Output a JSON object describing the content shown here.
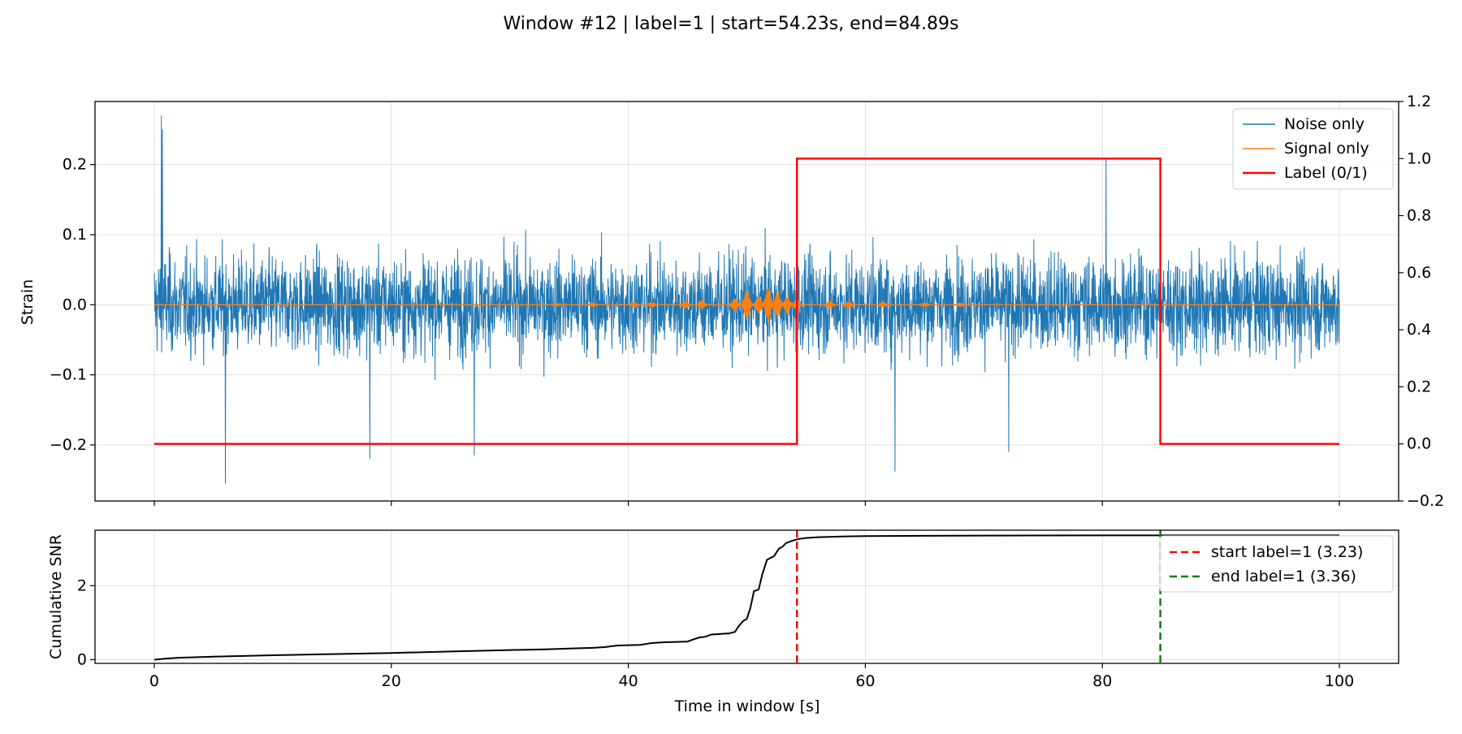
{
  "figure": {
    "title": "Window #12 | label=1 | start=54.23s, end=84.89s"
  },
  "chart_data": [
    {
      "type": "line",
      "panel": "top",
      "ylabel": "Strain",
      "xlim": [
        -5,
        105
      ],
      "ylim": [
        -0.28,
        0.29
      ],
      "ylim_right": [
        -0.2,
        1.2
      ],
      "grid": true,
      "x_ticks": [
        0,
        20,
        40,
        60,
        80,
        100
      ],
      "y_ticks": [
        "−0.2",
        "−0.1",
        "0.0",
        "0.1",
        "0.2"
      ],
      "y_tick_values": [
        -0.2,
        -0.1,
        0.0,
        0.1,
        0.2
      ],
      "y_ticks_right": [
        "−0.2",
        "0.0",
        "0.2",
        "0.4",
        "0.6",
        "0.8",
        "1.0",
        "1.2"
      ],
      "y_tick_values_right": [
        -0.2,
        0.0,
        0.2,
        0.4,
        0.6,
        0.8,
        1.0,
        1.2
      ],
      "legend_placement": "top-right",
      "series": [
        {
          "name": "Noise only",
          "color": "#1f77b4",
          "kind": "noise",
          "x_range": [
            0,
            100
          ],
          "envelope": 0.12,
          "spikes": [
            [
              0.6,
              0.27
            ],
            [
              0.7,
              0.25
            ],
            [
              6.0,
              -0.255
            ],
            [
              18.2,
              -0.22
            ],
            [
              27.0,
              -0.215
            ],
            [
              80.3,
              0.21
            ],
            [
              62.5,
              -0.238
            ],
            [
              72.1,
              -0.21
            ]
          ]
        },
        {
          "name": "Signal only",
          "color": "#ff7f0e",
          "kind": "chirp",
          "x_range": [
            0,
            100
          ],
          "bursts": [
            [
              34.0,
              0.002
            ],
            [
              37.0,
              0.003
            ],
            [
              40.5,
              0.004
            ],
            [
              42.0,
              0.004
            ],
            [
              44.8,
              0.006
            ],
            [
              46.2,
              0.007
            ],
            [
              49.0,
              0.01
            ],
            [
              50.0,
              0.022
            ],
            [
              51.0,
              0.013
            ],
            [
              51.8,
              0.026
            ],
            [
              52.6,
              0.02
            ],
            [
              53.4,
              0.013
            ],
            [
              54.2,
              0.008
            ],
            [
              57.0,
              0.006
            ],
            [
              58.6,
              0.005
            ],
            [
              61.5,
              0.004
            ],
            [
              65.0,
              0.003
            ],
            [
              68.0,
              0.003
            ]
          ]
        },
        {
          "name": "Label (0/1)",
          "color": "#ff0000",
          "axis": "right",
          "x": [
            0,
            54.23,
            54.23,
            84.89,
            84.89,
            100
          ],
          "y": [
            0,
            0,
            1,
            1,
            0,
            0
          ]
        }
      ]
    },
    {
      "type": "line",
      "panel": "bottom",
      "xlabel": "Time in window [s]",
      "ylabel": "Cumulative SNR",
      "xlim": [
        -5,
        105
      ],
      "ylim": [
        -0.1,
        3.5
      ],
      "grid": true,
      "x_ticks": [
        "0",
        "20",
        "40",
        "60",
        "80",
        "100"
      ],
      "x_tick_values": [
        0,
        20,
        40,
        60,
        80,
        100
      ],
      "y_ticks": [
        "0",
        "2"
      ],
      "y_tick_values": [
        0,
        2
      ],
      "legend_placement": "top-right",
      "series": [
        {
          "name": "",
          "color": "#000000",
          "x": [
            0,
            1,
            2,
            5,
            10,
            15,
            20,
            25,
            30,
            33,
            35,
            37,
            38,
            39,
            40,
            41,
            42,
            43,
            44,
            45,
            45.5,
            46,
            46.5,
            47,
            48,
            48.5,
            49,
            49.3,
            49.7,
            50,
            50.3,
            50.6,
            51,
            51.3,
            51.7,
            52,
            52.3,
            52.7,
            53,
            53.3,
            53.7,
            54,
            54.3,
            55,
            56,
            58,
            60,
            65,
            70,
            80,
            90,
            100
          ],
          "y": [
            0,
            0.03,
            0.05,
            0.08,
            0.12,
            0.15,
            0.18,
            0.22,
            0.26,
            0.28,
            0.3,
            0.32,
            0.34,
            0.38,
            0.39,
            0.4,
            0.45,
            0.47,
            0.48,
            0.49,
            0.55,
            0.6,
            0.62,
            0.68,
            0.7,
            0.71,
            0.75,
            0.9,
            1.05,
            1.1,
            1.4,
            1.85,
            1.9,
            2.3,
            2.7,
            2.75,
            2.8,
            3.0,
            3.05,
            3.15,
            3.2,
            3.23,
            3.26,
            3.29,
            3.31,
            3.33,
            3.34,
            3.35,
            3.355,
            3.36,
            3.36,
            3.36
          ]
        },
        {
          "name": "start label=1 (3.23)",
          "color": "#ff0000",
          "style": "dashed",
          "vline_x": 54.23
        },
        {
          "name": "end label=1 (3.36)",
          "color": "#008000",
          "style": "dashed",
          "vline_x": 84.89
        }
      ]
    }
  ]
}
